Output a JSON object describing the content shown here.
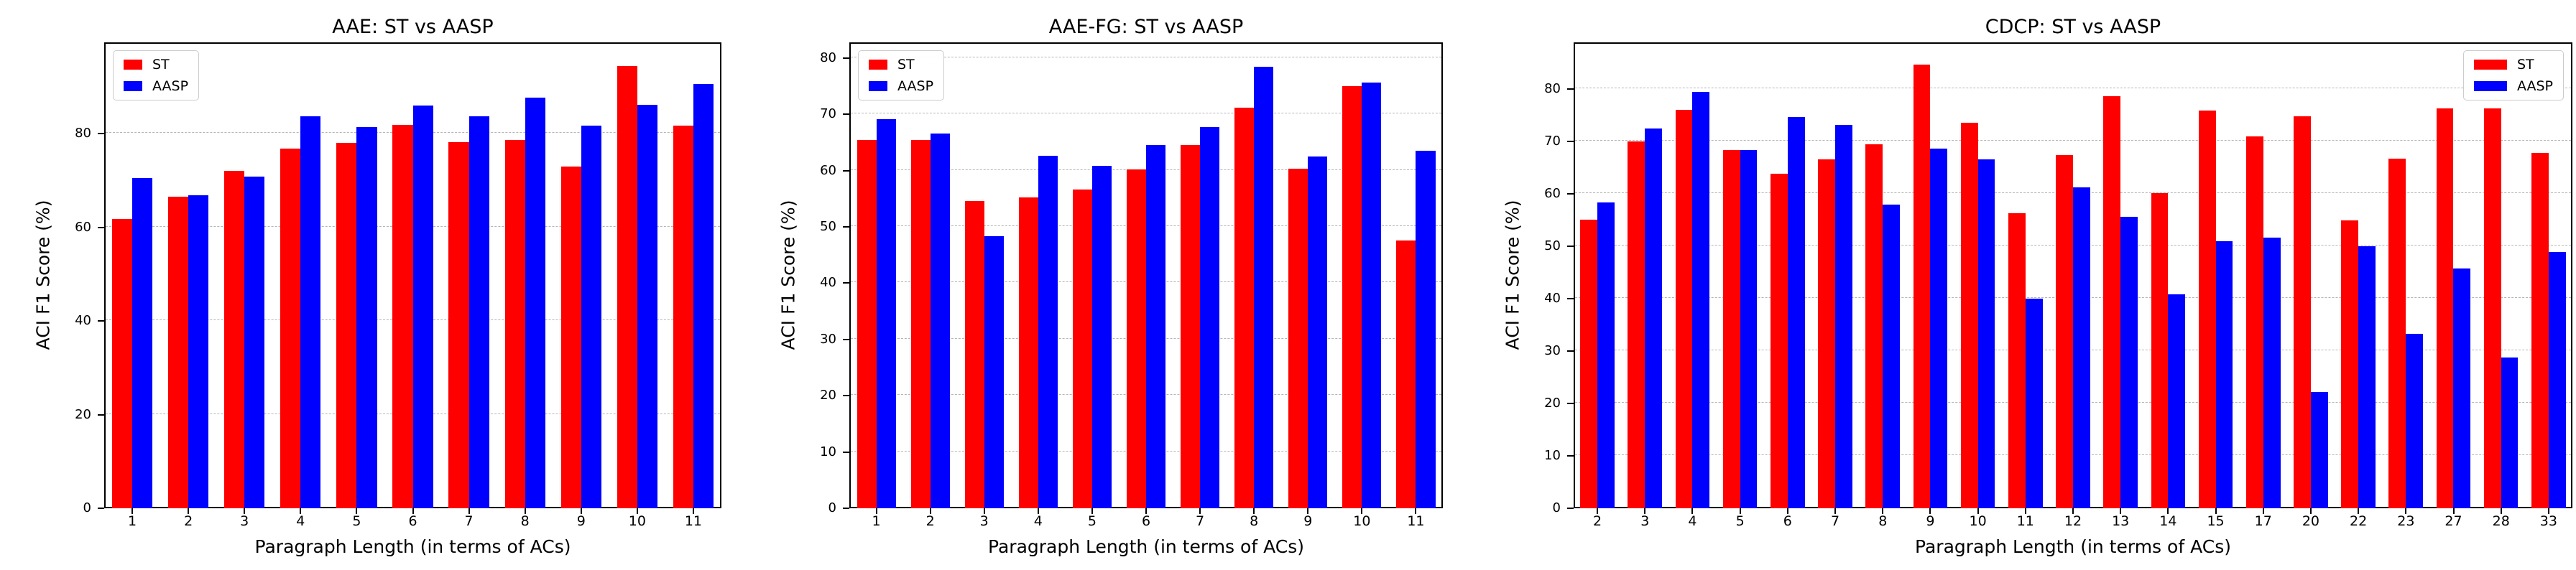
{
  "figure": {
    "background": "#ffffff",
    "frame_color": "#000000",
    "grid_color": "#b5b5b5"
  },
  "colors": {
    "st": "#ff0000",
    "aasp": "#0000ff"
  },
  "legend_labels": [
    "ST",
    "AASP"
  ],
  "chart_data": [
    {
      "type": "bar",
      "title": "AAE: ST vs AASP",
      "xlabel": "Paragraph Length (in terms of ACs)",
      "ylabel": "ACI F1 Score (%)",
      "categories": [
        "1",
        "2",
        "3",
        "4",
        "5",
        "6",
        "7",
        "8",
        "9",
        "10",
        "11"
      ],
      "series": [
        {
          "name": "ST",
          "color": "#ff0000",
          "values": [
            61.8,
            66.5,
            72.0,
            76.8,
            78.0,
            81.9,
            78.2,
            78.6,
            73.0,
            94.5,
            81.7
          ]
        },
        {
          "name": "AASP",
          "color": "#0000ff",
          "values": [
            70.6,
            66.8,
            70.8,
            83.7,
            81.4,
            86.0,
            83.7,
            87.7,
            81.7,
            86.2,
            90.6
          ]
        }
      ],
      "yticks": [
        0,
        20,
        40,
        60,
        80
      ],
      "ylim": [
        0,
        99.5
      ],
      "grid": true,
      "legend_position": "top-left"
    },
    {
      "type": "bar",
      "title": "AAE-FG: ST vs AASP",
      "xlabel": "Paragraph Length (in terms of ACs)",
      "ylabel": "ACI F1 Score (%)",
      "categories": [
        "1",
        "2",
        "3",
        "4",
        "5",
        "6",
        "7",
        "8",
        "9",
        "10",
        "11"
      ],
      "series": [
        {
          "name": "ST",
          "color": "#ff0000",
          "values": [
            65.4,
            65.4,
            54.6,
            55.2,
            56.6,
            60.2,
            64.6,
            71.2,
            60.4,
            75.0,
            47.6
          ]
        },
        {
          "name": "AASP",
          "color": "#0000ff",
          "values": [
            69.2,
            66.6,
            48.3,
            62.7,
            60.9,
            64.6,
            67.7,
            78.5,
            62.5,
            75.7,
            63.6
          ]
        }
      ],
      "yticks": [
        0,
        10,
        20,
        30,
        40,
        50,
        60,
        70,
        80
      ],
      "ylim": [
        0,
        82.8
      ],
      "grid": true,
      "legend_position": "top-left"
    },
    {
      "type": "bar",
      "title": "CDCP: ST vs AASP",
      "xlabel": "Paragraph Length (in terms of ACs)",
      "ylabel": "ACI F1 Score (%)",
      "categories": [
        "2",
        "3",
        "4",
        "5",
        "6",
        "7",
        "8",
        "9",
        "10",
        "11",
        "12",
        "13",
        "14",
        "15",
        "17",
        "20",
        "22",
        "23",
        "27",
        "28",
        "33"
      ],
      "series": [
        {
          "name": "ST",
          "color": "#ff0000",
          "values": [
            55.1,
            70.0,
            76.0,
            68.4,
            63.9,
            66.6,
            69.4,
            84.6,
            73.6,
            56.3,
            67.4,
            78.6,
            60.1,
            75.9,
            71.0,
            74.8,
            54.9,
            66.7,
            76.3,
            76.3,
            67.8
          ]
        },
        {
          "name": "AASP",
          "color": "#0000ff",
          "values": [
            58.3,
            72.5,
            79.5,
            68.3,
            74.7,
            73.2,
            57.9,
            68.6,
            66.6,
            40.0,
            61.2,
            55.6,
            40.8,
            50.9,
            51.7,
            22.2,
            50.0,
            33.3,
            45.7,
            28.7,
            48.9
          ]
        }
      ],
      "yticks": [
        0,
        10,
        20,
        30,
        40,
        50,
        60,
        70,
        80
      ],
      "ylim": [
        0,
        88.9
      ],
      "grid": true,
      "legend_position": "top-right"
    }
  ]
}
